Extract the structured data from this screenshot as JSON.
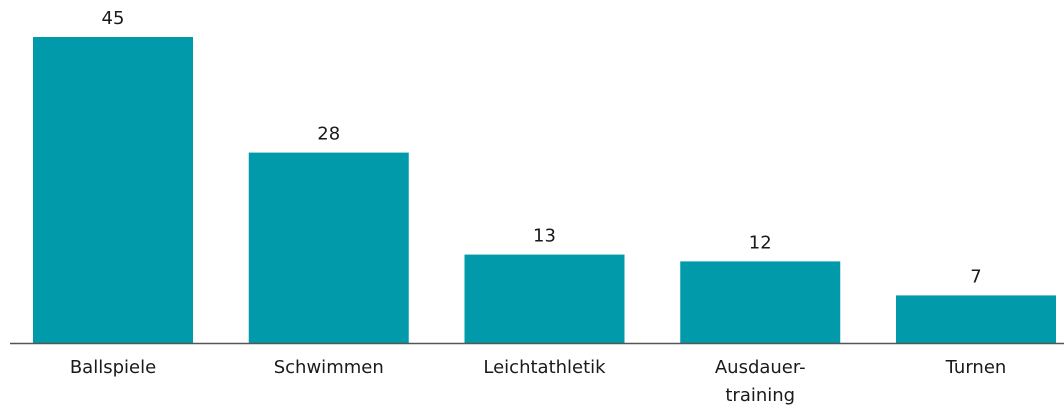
{
  "chart_data": {
    "type": "bar",
    "categories": [
      "Ballspiele",
      "Schwimmen",
      "Leichtathletik",
      "Ausdauer-\ntraining",
      "Turnen"
    ],
    "values": [
      45,
      28,
      13,
      12,
      7
    ],
    "color": "#009aab"
  }
}
